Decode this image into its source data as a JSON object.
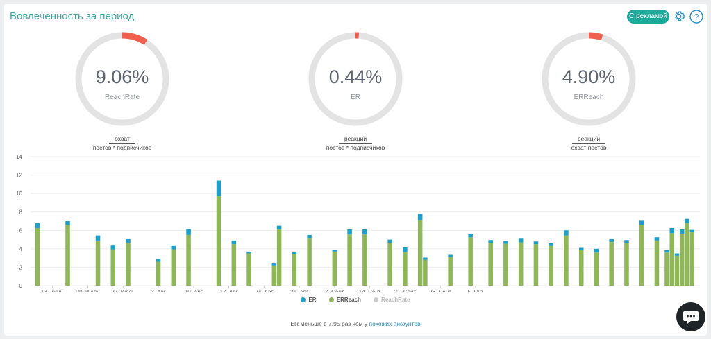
{
  "header": {
    "title": "Вовлеченность за период",
    "ads_button_label": "С рекламой"
  },
  "gauges": [
    {
      "value_text": "9.06%",
      "value": 9.06,
      "label": "ReachRate",
      "numerator": "охват",
      "denominator": "постов * подписчиков"
    },
    {
      "value_text": "0.44%",
      "value": 0.44,
      "label": "ER",
      "numerator": "реакций",
      "denominator": "постов * подписчиков"
    },
    {
      "value_text": "4.90%",
      "value": 4.9,
      "label": "ERReach",
      "numerator": "реакций",
      "denominator": "охват постов"
    }
  ],
  "colors": {
    "accent": "#1fa99a",
    "gauge_track": "#e3e3e3",
    "gauge_fill": "#f0604e",
    "er": "#1f9ec7",
    "erreach": "#8fb75a",
    "reachrate": "#cccccc"
  },
  "chart_data": {
    "type": "bar",
    "stacked": true,
    "ylim": [
      0,
      14
    ],
    "yticks": [
      0,
      2,
      4,
      6,
      8,
      10,
      12,
      14
    ],
    "grid": true,
    "legend_position": "bottom",
    "x_tick_labels": [
      "13. Июль",
      "20. Июль",
      "27. Июль",
      "3. Авг",
      "10. Авг",
      "17. Авг",
      "24. Авг",
      "31. Авг",
      "7. Сент",
      "14. Сент",
      "21. Сент",
      "28. Сент",
      "5. Окт"
    ],
    "series": [
      {
        "name": "ER",
        "color": "#1f9ec7"
      },
      {
        "name": "ERReach",
        "color": "#8fb75a"
      },
      {
        "name": "ReachRate",
        "color": "#cccccc",
        "hidden": true
      }
    ],
    "bars": [
      {
        "day": 0,
        "erreach": 6.25,
        "er": 0.55
      },
      {
        "day": 6,
        "erreach": 6.6,
        "er": 0.4
      },
      {
        "day": 12,
        "erreach": 4.9,
        "er": 0.55
      },
      {
        "day": 15,
        "erreach": 3.95,
        "er": 0.4
      },
      {
        "day": 18,
        "erreach": 4.6,
        "er": 0.45
      },
      {
        "day": 24,
        "erreach": 2.6,
        "er": 0.3
      },
      {
        "day": 27,
        "erreach": 3.95,
        "er": 0.35
      },
      {
        "day": 30,
        "erreach": 5.5,
        "er": 0.65
      },
      {
        "day": 36,
        "erreach": 9.7,
        "er": 1.7
      },
      {
        "day": 39,
        "erreach": 4.5,
        "er": 0.4
      },
      {
        "day": 42,
        "erreach": 3.5,
        "er": 0.2
      },
      {
        "day": 47,
        "erreach": 2.2,
        "er": 0.2
      },
      {
        "day": 48,
        "erreach": 6.1,
        "er": 0.4
      },
      {
        "day": 51,
        "erreach": 3.45,
        "er": 0.25
      },
      {
        "day": 54,
        "erreach": 5.1,
        "er": 0.4
      },
      {
        "day": 59,
        "erreach": 3.7,
        "er": 0.2
      },
      {
        "day": 62,
        "erreach": 5.55,
        "er": 0.55
      },
      {
        "day": 65,
        "erreach": 5.55,
        "er": 0.55
      },
      {
        "day": 70,
        "erreach": 4.65,
        "er": 0.35
      },
      {
        "day": 73,
        "erreach": 3.65,
        "er": 0.5
      },
      {
        "day": 76,
        "erreach": 7.1,
        "er": 0.7
      },
      {
        "day": 77,
        "erreach": 2.8,
        "er": 0.25
      },
      {
        "day": 82,
        "erreach": 3.1,
        "er": 0.25
      },
      {
        "day": 86,
        "erreach": 5.25,
        "er": 0.4
      },
      {
        "day": 90,
        "erreach": 4.65,
        "er": 0.3
      },
      {
        "day": 93,
        "erreach": 4.55,
        "er": 0.3
      },
      {
        "day": 96,
        "erreach": 4.7,
        "er": 0.4
      },
      {
        "day": 99,
        "erreach": 4.5,
        "er": 0.3
      },
      {
        "day": 102,
        "erreach": 4.3,
        "er": 0.3
      },
      {
        "day": 105,
        "erreach": 5.45,
        "er": 0.55
      },
      {
        "day": 108,
        "erreach": 3.85,
        "er": 0.25
      },
      {
        "day": 111,
        "erreach": 3.6,
        "er": 0.4
      },
      {
        "day": 114,
        "erreach": 4.75,
        "er": 0.3
      },
      {
        "day": 117,
        "erreach": 4.6,
        "er": 0.35
      },
      {
        "day": 120,
        "erreach": 6.55,
        "er": 0.5
      },
      {
        "day": 123,
        "erreach": 4.9,
        "er": 0.35
      },
      {
        "day": 125,
        "erreach": 3.6,
        "er": 0.25
      },
      {
        "day": 126,
        "erreach": 5.7,
        "er": 0.55
      },
      {
        "day": 127,
        "erreach": 3.25,
        "er": 0.25
      },
      {
        "day": 128,
        "erreach": 5.65,
        "er": 0.45
      },
      {
        "day": 129,
        "erreach": 6.8,
        "er": 0.45
      },
      {
        "day": 130,
        "erreach": 5.8,
        "er": 0.25
      }
    ]
  },
  "legend": [
    {
      "name": "ER",
      "color": "#1f9ec7",
      "active": true
    },
    {
      "name": "ERReach",
      "color": "#8fb75a",
      "active": true
    },
    {
      "name": "ReachRate",
      "color": "#cccccc",
      "active": false
    }
  ],
  "footnote": {
    "text": "ER меньше в 7.95 раз чем у ",
    "link": "похожих аккаунтов"
  }
}
